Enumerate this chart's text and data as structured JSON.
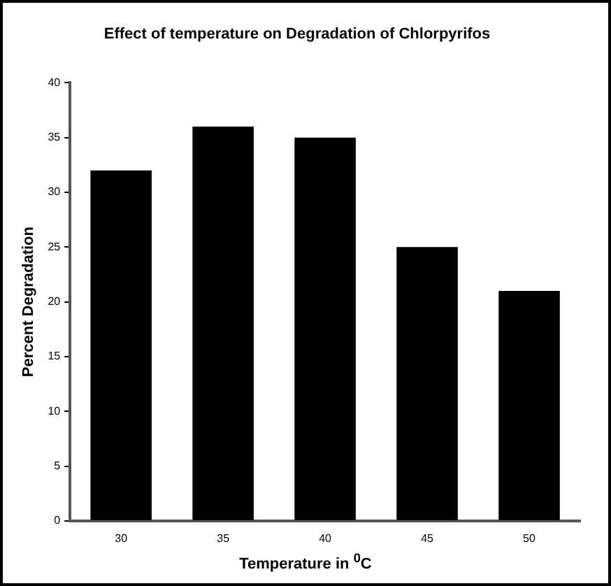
{
  "chart_data": {
    "type": "bar",
    "title": "Effect of temperature on Degradation of Chlorpyrifos",
    "xlabel": "Temperature in $^{0}$C",
    "ylabel": "Percent Degradation",
    "categories": [
      "30",
      "35",
      "40",
      "45",
      "50"
    ],
    "values": [
      32,
      36,
      35,
      25,
      21
    ],
    "color": "#000000",
    "ylim": [
      0,
      40
    ],
    "yticks": [
      0,
      5,
      10,
      15,
      20,
      25,
      30,
      35,
      40
    ],
    "grid": false,
    "legend": false
  }
}
